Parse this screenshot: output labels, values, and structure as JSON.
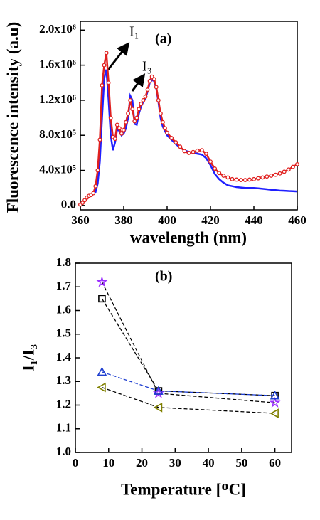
{
  "chart_data": [
    {
      "type": "line",
      "ylabel": "Fluorescence intensity (a.u)",
      "xlabel": "wavelength (nm)",
      "annotations": [
        "(a)",
        "I₁",
        "I₃"
      ],
      "xlim": [
        360,
        460
      ],
      "xticks": [
        360,
        380,
        400,
        420,
        440,
        460
      ],
      "ylim": [
        -50000,
        2100000
      ],
      "yticks": [
        {
          "value": 0,
          "label": "0.0"
        },
        {
          "value": 400000,
          "label": "4.0x10⁵"
        },
        {
          "value": 800000,
          "label": "8.0x10⁵"
        },
        {
          "value": 1200000,
          "label": "1.2x10⁶"
        },
        {
          "value": 1600000,
          "label": "1.6x10⁶"
        },
        {
          "value": 2000000,
          "label": "2.0x10⁶"
        }
      ],
      "x": [
        360,
        361,
        362,
        363,
        364,
        365,
        366,
        367,
        368,
        369,
        370,
        371,
        372,
        373,
        374,
        375,
        376,
        377,
        378,
        379,
        380,
        381,
        382,
        383,
        384,
        385,
        386,
        387,
        388,
        389,
        390,
        391,
        392,
        393,
        394,
        395,
        396,
        397,
        398,
        399,
        400,
        402,
        404,
        406,
        408,
        410,
        412,
        414,
        416,
        418,
        420,
        422,
        424,
        426,
        428,
        430,
        432,
        434,
        436,
        438,
        440,
        442,
        444,
        446,
        448,
        450,
        452,
        454,
        456,
        458,
        460
      ],
      "series": [
        {
          "color": "#1f1fff",
          "marker": "none",
          "values": [
            10000,
            30000,
            60000,
            90000,
            110000,
            120000,
            130000,
            150000,
            250000,
            500000,
            1000000,
            1450000,
            1550000,
            1200000,
            800000,
            630000,
            720000,
            870000,
            850000,
            800000,
            820000,
            880000,
            1000000,
            1250000,
            1200000,
            930000,
            920000,
            1050000,
            1130000,
            1180000,
            1220000,
            1300000,
            1400000,
            1430000,
            1420000,
            1330000,
            1180000,
            1000000,
            900000,
            850000,
            800000,
            750000,
            700000,
            660000,
            630000,
            610000,
            600000,
            590000,
            580000,
            540000,
            460000,
            360000,
            300000,
            260000,
            230000,
            220000,
            210000,
            205000,
            200000,
            200000,
            200000,
            195000,
            190000,
            185000,
            180000,
            175000,
            170000,
            168000,
            165000,
            163000,
            160000
          ]
        },
        {
          "color": "#e0201f",
          "marker": "circle",
          "values": [
            10000,
            30000,
            60000,
            90000,
            110000,
            120000,
            140000,
            220000,
            400000,
            750000,
            1370000,
            1600000,
            1740000,
            1400000,
            1000000,
            780000,
            760000,
            920000,
            880000,
            820000,
            860000,
            950000,
            1050000,
            1200000,
            1100000,
            960000,
            1000000,
            1100000,
            1160000,
            1200000,
            1240000,
            1320000,
            1420000,
            1470000,
            1440000,
            1350000,
            1200000,
            1050000,
            950000,
            880000,
            830000,
            770000,
            720000,
            670000,
            620000,
            600000,
            610000,
            625000,
            630000,
            590000,
            500000,
            420000,
            370000,
            340000,
            320000,
            300000,
            295000,
            290000,
            290000,
            295000,
            300000,
            310000,
            320000,
            330000,
            340000,
            350000,
            365000,
            385000,
            410000,
            440000,
            470000
          ]
        }
      ]
    },
    {
      "type": "line",
      "ylabel": "I₁/I₃",
      "xlabel": "Temperature [ᴼC]",
      "annotations": [
        "(b)"
      ],
      "xlim": [
        0,
        65
      ],
      "xticks": [
        0,
        10,
        20,
        30,
        40,
        50,
        60
      ],
      "ylim": [
        1.0,
        1.8
      ],
      "yticks": [
        {
          "value": 1.0,
          "label": "1.0"
        },
        1.1,
        1.2,
        1.3,
        1.4,
        1.5,
        1.6,
        1.7,
        {
          "value": 1.8,
          "label": "1.8"
        }
      ],
      "linestyle": "dashed",
      "x": [
        8,
        25,
        60
      ],
      "series": [
        {
          "color": "#000000",
          "marker": "square",
          "values": [
            1.65,
            1.26,
            1.24
          ]
        },
        {
          "color": "#9b30ff",
          "marker": "star",
          "values": [
            1.72,
            1.25,
            1.21
          ]
        },
        {
          "color": "#1f3fd0",
          "marker": "triangle-up",
          "values": [
            1.34,
            1.26,
            1.24
          ]
        },
        {
          "color": "#808000",
          "marker": "triangle-left",
          "values": [
            1.275,
            1.19,
            1.165
          ]
        }
      ]
    }
  ]
}
